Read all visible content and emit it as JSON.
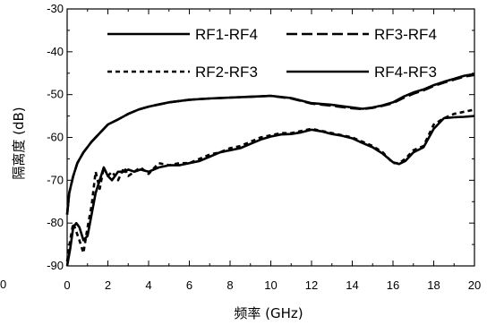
{
  "chart_data": {
    "type": "line",
    "xlabel": "频率 (GHz)",
    "ylabel": "隔离度 (dB)",
    "xlim": [
      0,
      20
    ],
    "ylim": [
      -90,
      -30
    ],
    "x_ticks": [
      0,
      2,
      4,
      6,
      8,
      10,
      12,
      14,
      16,
      18,
      20
    ],
    "y_ticks": [
      -90,
      -80,
      -70,
      -60,
      -50,
      -40,
      -30
    ],
    "x_tick_labels": [
      "0",
      "2",
      "4",
      "6",
      "8",
      "10",
      "12",
      "14",
      "16",
      "18",
      "20"
    ],
    "y_tick_labels": [
      "-90",
      "-80",
      "-70",
      "-60",
      "-50",
      "-40",
      "-30"
    ],
    "stray_left_label": "0",
    "legend": {
      "placement": "top-right",
      "entries": [
        {
          "label": "RF1-RF4",
          "style": "solid"
        },
        {
          "label": "RF3-RF4",
          "style": "dashed"
        },
        {
          "label": "RF2-RF3",
          "style": "dotted"
        },
        {
          "label": "RF4-RF3",
          "style": "solid"
        }
      ]
    },
    "series": [
      {
        "name": "RF1-RF4",
        "style": "solid",
        "x": [
          0,
          0.1,
          0.3,
          0.5,
          0.8,
          1.2,
          1.6,
          2,
          2.5,
          3,
          3.5,
          4,
          4.5,
          5,
          6,
          7,
          8,
          9,
          10,
          11,
          12,
          13,
          14,
          14.5,
          15,
          15.5,
          16,
          16.5,
          17,
          17.5,
          18,
          18.5,
          19,
          19.5,
          20
        ],
        "y": [
          -78,
          -73,
          -69,
          -66,
          -63.5,
          -61,
          -59,
          -57,
          -55.8,
          -54.5,
          -53.5,
          -52.8,
          -52.3,
          -51.8,
          -51.2,
          -50.9,
          -50.7,
          -50.5,
          -50.3,
          -50.8,
          -52,
          -52.4,
          -53,
          -53.3,
          -53,
          -52.5,
          -51.8,
          -50.5,
          -49.5,
          -48.8,
          -47.8,
          -47,
          -46.3,
          -45.6,
          -45.2
        ]
      },
      {
        "name": "RF3-RF4",
        "style": "dashed",
        "x": [
          0,
          0.1,
          0.3,
          0.5,
          0.8,
          1.2,
          1.6,
          2,
          2.5,
          3,
          3.5,
          4,
          4.5,
          5,
          6,
          7,
          8,
          9,
          10,
          11,
          12,
          13,
          14,
          14.5,
          15,
          15.5,
          16,
          16.5,
          17,
          17.5,
          18,
          18.5,
          19,
          19.5,
          20
        ],
        "y": [
          -78,
          -73,
          -69,
          -66,
          -63.5,
          -61,
          -59,
          -57,
          -55.8,
          -54.5,
          -53.5,
          -52.8,
          -52.3,
          -51.8,
          -51.2,
          -50.9,
          -50.7,
          -50.5,
          -50.3,
          -50.9,
          -52.1,
          -52.6,
          -53.2,
          -53.4,
          -53.1,
          -52.6,
          -52,
          -50.8,
          -49.8,
          -49,
          -48,
          -47.2,
          -46.5,
          -45.8,
          -45.4
        ]
      },
      {
        "name": "RF2-RF3",
        "style": "dotted",
        "x": [
          0,
          0.15,
          0.3,
          0.45,
          0.6,
          0.8,
          1,
          1.2,
          1.4,
          1.6,
          1.8,
          2,
          2.2,
          2.5,
          2.8,
          3,
          3.3,
          3.6,
          4,
          4.5,
          5,
          5.5,
          6,
          6.5,
          7,
          7.5,
          8,
          8.5,
          9,
          9.5,
          10,
          10.5,
          11,
          11.5,
          12,
          12.5,
          13,
          13.5,
          14,
          14.5,
          15,
          15.5,
          16,
          16.3,
          16.6,
          17,
          17.5,
          18,
          18.5,
          19,
          19.5,
          20
        ],
        "y": [
          -89,
          -84,
          -80,
          -82,
          -84,
          -87,
          -81,
          -76,
          -68,
          -72,
          -67,
          -69,
          -68,
          -70,
          -67,
          -69,
          -68,
          -67,
          -68.5,
          -66,
          -66.5,
          -66,
          -66,
          -65,
          -64,
          -63.5,
          -62.5,
          -62,
          -61,
          -60,
          -59.5,
          -59,
          -59,
          -58.5,
          -58,
          -58.5,
          -59,
          -59.5,
          -60,
          -61,
          -62,
          -63.5,
          -66,
          -66,
          -65,
          -63,
          -62,
          -57,
          -55.5,
          -54.5,
          -54,
          -53.5
        ]
      },
      {
        "name": "RF4-RF3",
        "style": "solid",
        "x": [
          0,
          0.15,
          0.3,
          0.45,
          0.6,
          0.8,
          1,
          1.2,
          1.4,
          1.6,
          1.8,
          2,
          2.2,
          2.5,
          2.8,
          3,
          3.3,
          3.6,
          4,
          4.5,
          5,
          5.5,
          6,
          6.5,
          7,
          7.5,
          8,
          8.5,
          9,
          9.5,
          10,
          10.5,
          11,
          11.5,
          12,
          12.5,
          13,
          13.5,
          14,
          14.5,
          15,
          15.5,
          16,
          16.3,
          16.6,
          17,
          17.5,
          18,
          18.5,
          19,
          19.5,
          20
        ],
        "y": [
          -90,
          -86,
          -81,
          -80,
          -81,
          -84,
          -83,
          -78,
          -73,
          -70,
          -67,
          -69,
          -70,
          -68,
          -68,
          -67.5,
          -68,
          -67.5,
          -68,
          -67,
          -66.5,
          -66.5,
          -66,
          -65.5,
          -64.5,
          -63.5,
          -63,
          -62.5,
          -61.5,
          -60.5,
          -59.8,
          -59.3,
          -59.2,
          -58.8,
          -58.2,
          -58.6,
          -59.2,
          -59.6,
          -60.2,
          -61.3,
          -62.3,
          -63.8,
          -65.8,
          -66.2,
          -65.5,
          -63.5,
          -62.3,
          -58,
          -55.5,
          -55.3,
          -55.2,
          -55
        ]
      }
    ]
  }
}
